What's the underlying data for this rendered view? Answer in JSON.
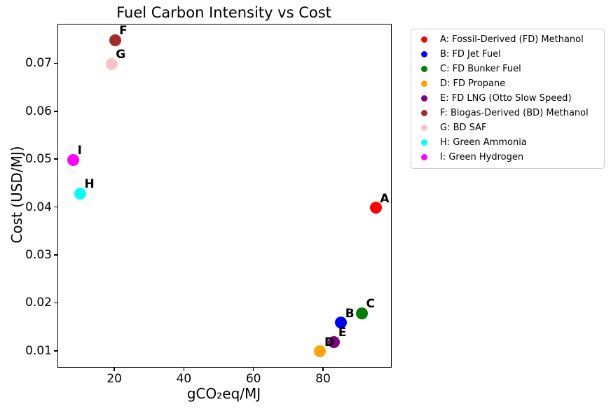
{
  "chart_data": {
    "type": "scatter",
    "title": "Fuel Carbon Intensity vs Cost",
    "xlabel": "gCO₂eq/MJ",
    "ylabel": "Cost (USD/MJ)",
    "xlim": [
      3.65,
      99.35
    ],
    "ylim": [
      0.00675,
      0.07825
    ],
    "x_ticks": [
      20,
      40,
      60,
      80
    ],
    "x_tick_labels": [
      "20",
      "40",
      "60",
      "80"
    ],
    "y_ticks": [
      0.01,
      0.02,
      0.03,
      0.04,
      0.05,
      0.06,
      0.07
    ],
    "y_tick_labels": [
      "0.01",
      "0.02",
      "0.03",
      "0.04",
      "0.05",
      "0.06",
      "0.07"
    ],
    "grid": false,
    "legend_position": "outside-upper-right",
    "legend_border_color": "#cccccc",
    "points": [
      {
        "label": "A",
        "legend": "A: Fossil-Derived (FD) Methanol",
        "x": 95,
        "y": 0.04,
        "color": "#ff0000"
      },
      {
        "label": "B",
        "legend": "B: FD Jet Fuel",
        "x": 85,
        "y": 0.016,
        "color": "#0000ff"
      },
      {
        "label": "C",
        "legend": "C: FD Bunker Fuel",
        "x": 91,
        "y": 0.018,
        "color": "#008000"
      },
      {
        "label": "D",
        "legend": "D: FD Propane",
        "x": 79,
        "y": 0.01,
        "color": "#ffa500"
      },
      {
        "label": "E",
        "legend": "E: FD LNG (Otto Slow Speed)",
        "x": 83,
        "y": 0.012,
        "color": "#800080"
      },
      {
        "label": "F",
        "legend": "F: Biogas-Derived (BD) Methanol",
        "x": 20,
        "y": 0.075,
        "color": "#a52a2a"
      },
      {
        "label": "G",
        "legend": "G: BD SAF",
        "x": 19,
        "y": 0.07,
        "color": "#ffc0cb"
      },
      {
        "label": "H",
        "legend": "H: Green Ammonia",
        "x": 10,
        "y": 0.043,
        "color": "#00ffff"
      },
      {
        "label": "I",
        "legend": "I: Green Hydrogen",
        "x": 8,
        "y": 0.05,
        "color": "#ff00ff"
      }
    ]
  }
}
